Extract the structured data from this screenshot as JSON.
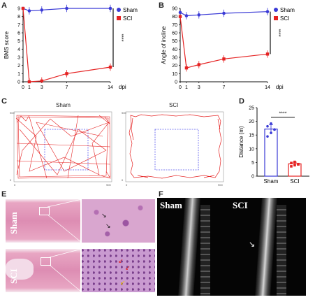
{
  "panel_letters": [
    "A",
    "B",
    "C",
    "D",
    "E",
    "F"
  ],
  "chart_data": [
    {
      "type": "line",
      "panel": "A",
      "x": [
        0,
        1,
        3,
        7,
        14
      ],
      "xticks": [
        "0",
        "1",
        "3",
        "7",
        "14"
      ],
      "xlabel": "dpi",
      "ylabel": "BMS score",
      "ylim": [
        0,
        9
      ],
      "yticks": [
        "0",
        "1",
        "2",
        "3",
        "4",
        "5",
        "6",
        "7",
        "8",
        "9"
      ],
      "series": [
        {
          "name": "Sham",
          "color": "#3a3ad6",
          "values": [
            9,
            8.7,
            8.8,
            9,
            9
          ]
        },
        {
          "name": "SCI",
          "color": "#e52222",
          "values": [
            9,
            0,
            0.1,
            1.0,
            1.8
          ]
        }
      ],
      "significance": "****",
      "legend": "top-right"
    },
    {
      "type": "line",
      "panel": "B",
      "x": [
        0,
        1,
        3,
        7,
        14
      ],
      "xticks": [
        "0",
        "1",
        "3",
        "7",
        "14"
      ],
      "xlabel": "dpi",
      "ylabel": "Angle of incline",
      "ylim": [
        0,
        90
      ],
      "yticks": [
        "0",
        "10",
        "20",
        "30",
        "40",
        "50",
        "60",
        "70",
        "80",
        "90"
      ],
      "series": [
        {
          "name": "Sham",
          "color": "#3a3ad6",
          "values": [
            85,
            81,
            82,
            84,
            86
          ]
        },
        {
          "name": "SCI",
          "color": "#e52222",
          "values": [
            80,
            17,
            21,
            28,
            34
          ]
        }
      ],
      "significance": "****",
      "legend": "top-right"
    },
    {
      "type": "bar",
      "panel": "D",
      "categories": [
        "Sham",
        "SCI"
      ],
      "values": [
        17.2,
        4.5
      ],
      "errors": [
        1.6,
        0.6
      ],
      "points": [
        [
          14.5,
          15.8,
          17.0,
          18.2,
          19.2,
          17.0
        ],
        [
          3.6,
          4.0,
          4.4,
          4.8,
          5.2,
          4.3
        ]
      ],
      "colors": [
        "#3a3ad6",
        "#e52222"
      ],
      "ylabel": "Distance (m)",
      "ylim": [
        0,
        25
      ],
      "yticks": [
        "0",
        "5",
        "10",
        "15",
        "20",
        "25"
      ],
      "significance": "****"
    }
  ],
  "open_field": {
    "sham_title": "Sham",
    "sci_title": "SCI"
  },
  "histology": {
    "sham_label": "Sham",
    "sci_label": "SCI"
  },
  "mri": {
    "sham_label": "Sham",
    "sci_label": "SCI"
  }
}
